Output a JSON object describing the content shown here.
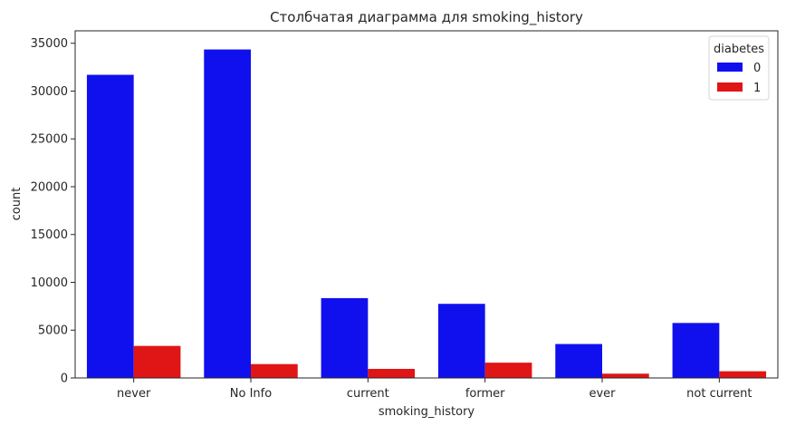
{
  "chart_data": {
    "type": "bar",
    "title": "Столбчатая диаграмма для smoking_history",
    "xlabel": "smoking_history",
    "ylabel": "count",
    "categories": [
      "never",
      "No Info",
      "current",
      "former",
      "ever",
      "not current"
    ],
    "series": [
      {
        "name": "0",
        "color": "#1010ee",
        "values": [
          31700,
          34350,
          8350,
          7750,
          3550,
          5750
        ]
      },
      {
        "name": "1",
        "color": "#e01515",
        "values": [
          3350,
          1450,
          950,
          1600,
          450,
          700
        ]
      }
    ],
    "ylim": [
      0,
      36300
    ],
    "yticks": [
      0,
      5000,
      10000,
      15000,
      20000,
      25000,
      30000,
      35000
    ],
    "legend": {
      "title": "diabetes",
      "placement": "top-right"
    },
    "grid": false
  }
}
